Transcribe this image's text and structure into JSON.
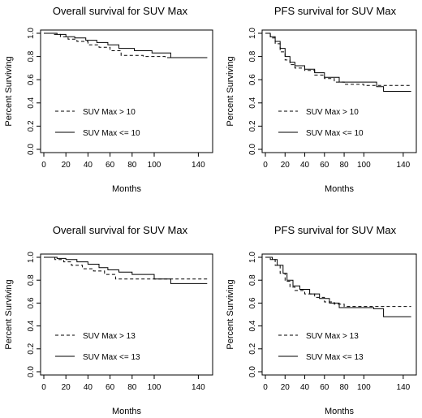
{
  "chart_data": [
    {
      "type": "line",
      "title": "Overall survival for SUV Max",
      "xlabel": "Months",
      "ylabel": "Percent Surviving",
      "xlim": [
        0,
        150
      ],
      "ylim": [
        0,
        1
      ],
      "xticks": [
        "0",
        "20",
        "40",
        "60",
        "80",
        "100",
        "140"
      ],
      "yticks": [
        "0.0",
        "0.2",
        "0.4",
        "0.6",
        "0.8",
        "1.0"
      ],
      "legend_position": "bottom-left",
      "series": [
        {
          "name": "SUV Max > 10",
          "style": "dashed",
          "x": [
            0,
            8,
            15,
            22,
            30,
            40,
            50,
            60,
            70,
            90,
            110,
            148
          ],
          "y": [
            1.0,
            0.99,
            0.97,
            0.95,
            0.93,
            0.9,
            0.88,
            0.85,
            0.81,
            0.8,
            0.79,
            0.79
          ]
        },
        {
          "name": "SUV Max <= 10",
          "style": "solid",
          "x": [
            0,
            12,
            20,
            28,
            38,
            48,
            58,
            68,
            82,
            98,
            115,
            148
          ],
          "y": [
            1.0,
            0.99,
            0.97,
            0.96,
            0.94,
            0.92,
            0.9,
            0.87,
            0.85,
            0.83,
            0.79,
            0.79
          ]
        }
      ]
    },
    {
      "type": "line",
      "title": "PFS survival for SUV Max",
      "xlabel": "Months",
      "ylabel": "Percent Surviving",
      "xlim": [
        0,
        150
      ],
      "ylim": [
        0,
        1
      ],
      "xticks": [
        "0",
        "20",
        "40",
        "60",
        "80",
        "100",
        "140"
      ],
      "yticks": [
        "0.0",
        "0.2",
        "0.4",
        "0.6",
        "0.8",
        "1.0"
      ],
      "legend_position": "bottom-right",
      "series": [
        {
          "name": "SUV Max > 10",
          "style": "dashed",
          "x": [
            0,
            5,
            10,
            15,
            20,
            25,
            30,
            40,
            50,
            60,
            70,
            80,
            100,
            115,
            148
          ],
          "y": [
            1.0,
            0.96,
            0.91,
            0.84,
            0.77,
            0.73,
            0.7,
            0.68,
            0.64,
            0.61,
            0.58,
            0.56,
            0.55,
            0.55,
            0.55
          ]
        },
        {
          "name": "SUV Max <= 10",
          "style": "solid",
          "x": [
            0,
            5,
            10,
            15,
            20,
            25,
            30,
            40,
            50,
            60,
            75,
            100,
            113,
            120,
            148
          ],
          "y": [
            1.0,
            0.97,
            0.93,
            0.87,
            0.8,
            0.75,
            0.72,
            0.69,
            0.66,
            0.62,
            0.58,
            0.58,
            0.54,
            0.5,
            0.5
          ]
        }
      ]
    },
    {
      "type": "line",
      "title": "Overall survival for SUV Max",
      "xlabel": "Months",
      "ylabel": "Percent Surviving",
      "xlim": [
        0,
        150
      ],
      "ylim": [
        0,
        1
      ],
      "xticks": [
        "0",
        "20",
        "40",
        "60",
        "80",
        "100",
        "140"
      ],
      "yticks": [
        "0.0",
        "0.2",
        "0.4",
        "0.6",
        "0.8",
        "1.0"
      ],
      "legend_position": "bottom-left",
      "series": [
        {
          "name": "SUV Max > 13",
          "style": "dashed",
          "x": [
            0,
            10,
            18,
            25,
            35,
            45,
            55,
            65,
            100,
            148
          ],
          "y": [
            1.0,
            0.98,
            0.96,
            0.93,
            0.9,
            0.88,
            0.85,
            0.81,
            0.81,
            0.81
          ]
        },
        {
          "name": "SUV Max <= 13",
          "style": "solid",
          "x": [
            0,
            12,
            20,
            30,
            40,
            50,
            58,
            68,
            80,
            100,
            115,
            148
          ],
          "y": [
            1.0,
            0.99,
            0.98,
            0.96,
            0.94,
            0.91,
            0.89,
            0.87,
            0.85,
            0.81,
            0.77,
            0.77
          ]
        }
      ]
    },
    {
      "type": "line",
      "title": "PFS survival for SUV Max",
      "xlabel": "Months",
      "ylabel": "Percent Surviving",
      "xlim": [
        0,
        150
      ],
      "ylim": [
        0,
        1
      ],
      "xticks": [
        "0",
        "20",
        "40",
        "60",
        "80",
        "100",
        "140"
      ],
      "yticks": [
        "0.0",
        "0.2",
        "0.4",
        "0.6",
        "0.8",
        "1.0"
      ],
      "legend_position": "bottom-right",
      "series": [
        {
          "name": "SUV Max > 13",
          "style": "dashed",
          "x": [
            0,
            5,
            10,
            15,
            20,
            25,
            30,
            40,
            50,
            60,
            70,
            80,
            100,
            148
          ],
          "y": [
            1.0,
            0.98,
            0.93,
            0.86,
            0.79,
            0.74,
            0.71,
            0.68,
            0.65,
            0.61,
            0.59,
            0.57,
            0.57,
            0.57
          ]
        },
        {
          "name": "SUV Max <= 13",
          "style": "solid",
          "x": [
            0,
            7,
            12,
            18,
            22,
            28,
            35,
            45,
            55,
            65,
            75,
            110,
            120,
            148
          ],
          "y": [
            1.0,
            0.98,
            0.93,
            0.86,
            0.8,
            0.75,
            0.72,
            0.68,
            0.64,
            0.6,
            0.56,
            0.55,
            0.48,
            0.48
          ]
        }
      ]
    }
  ]
}
